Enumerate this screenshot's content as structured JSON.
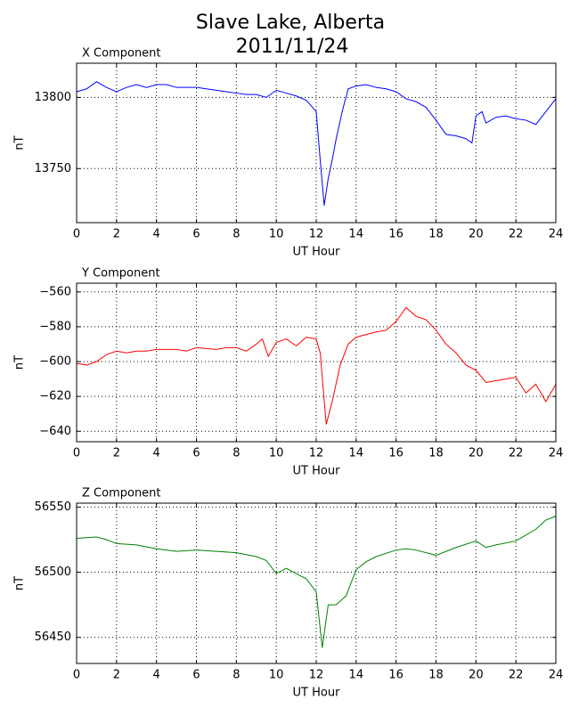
{
  "title": [
    "Slave Lake, Alberta",
    "2011/11/24"
  ],
  "chart_data": [
    {
      "type": "line",
      "title": "X Component",
      "xlabel": "UT Hour",
      "ylabel": "nT",
      "grid": true,
      "xlim": [
        0,
        24
      ],
      "xticks": [
        0,
        2,
        4,
        6,
        8,
        10,
        12,
        14,
        16,
        18,
        20,
        22,
        24
      ],
      "ylim": [
        13712,
        13824
      ],
      "yticks": [
        13750,
        13800
      ],
      "x": [
        0,
        0.5,
        1,
        1.5,
        2,
        2.5,
        3,
        3.5,
        4,
        4.5,
        5,
        5.5,
        6,
        6.5,
        7,
        7.5,
        8,
        8.5,
        9,
        9.5,
        10,
        10.5,
        11,
        11.5,
        12,
        12.2,
        12.4,
        12.6,
        12.8,
        13,
        13.3,
        13.6,
        14,
        14.5,
        15,
        15.5,
        16,
        16.5,
        17,
        17.5,
        18,
        18.5,
        19,
        19.5,
        19.8,
        20,
        20.3,
        20.5,
        21,
        21.5,
        22,
        22.5,
        23,
        23.5,
        24
      ],
      "series": [
        {
          "color": "#0000ff",
          "values": [
            13804,
            13806,
            13811,
            13807,
            13804,
            13807,
            13809,
            13807,
            13809,
            13809,
            13807,
            13807,
            13807,
            13806,
            13805,
            13804,
            13803,
            13802,
            13802,
            13800,
            13805,
            13803,
            13801,
            13798,
            13790,
            13756,
            13724,
            13743,
            13756,
            13771,
            13790,
            13806,
            13808,
            13809,
            13807,
            13806,
            13804,
            13799,
            13797,
            13793,
            13784,
            13774,
            13773,
            13771,
            13768,
            13787,
            13790,
            13782,
            13786,
            13787,
            13785,
            13784,
            13781,
            13790,
            13799
          ]
        }
      ]
    },
    {
      "type": "line",
      "title": "Y Component",
      "xlabel": "UT Hour",
      "ylabel": "nT",
      "grid": true,
      "xlim": [
        0,
        24
      ],
      "xticks": [
        0,
        2,
        4,
        6,
        8,
        10,
        12,
        14,
        16,
        18,
        20,
        22,
        24
      ],
      "ylim": [
        -646,
        -555
      ],
      "yticks": [
        {
          "value": -640,
          "label": "−640"
        },
        {
          "value": -620,
          "label": "−620"
        },
        {
          "value": -600,
          "label": "−600"
        },
        {
          "value": -580,
          "label": "−580"
        },
        {
          "value": -560,
          "label": "−560"
        }
      ],
      "x": [
        0,
        0.5,
        1,
        1.5,
        2,
        2.5,
        3,
        3.5,
        4,
        5,
        5.5,
        6,
        7,
        7.5,
        8,
        8.5,
        9,
        9.3,
        9.6,
        10,
        10.5,
        11,
        11.5,
        12,
        12.2,
        12.5,
        12.8,
        13.2,
        13.6,
        14,
        15,
        15.5,
        16,
        16.5,
        17,
        17.5,
        18,
        18.5,
        19,
        19.5,
        20,
        20.5,
        21,
        21.5,
        22,
        22.5,
        23,
        23.5,
        24
      ],
      "series": [
        {
          "color": "#ff0000",
          "values": [
            -601,
            -602,
            -600,
            -596,
            -594,
            -595,
            -594,
            -594,
            -593,
            -593,
            -594,
            -592,
            -593,
            -592,
            -592,
            -594,
            -590,
            -587,
            -597,
            -589,
            -587,
            -591,
            -586,
            -587,
            -595,
            -636,
            -623,
            -602,
            -590,
            -586,
            -583,
            -582,
            -577,
            -569,
            -574,
            -576,
            -582,
            -590,
            -595,
            -602,
            -605,
            -612,
            -611,
            -610,
            -609,
            -618,
            -613,
            -623,
            -613
          ]
        }
      ]
    },
    {
      "type": "line",
      "title": "Z Component",
      "xlabel": "UT Hour",
      "ylabel": "nT",
      "grid": true,
      "xlim": [
        0,
        24
      ],
      "xticks": [
        0,
        2,
        4,
        6,
        8,
        10,
        12,
        14,
        16,
        18,
        20,
        22,
        24
      ],
      "ylim": [
        56430,
        56553
      ],
      "yticks": [
        56450,
        56500,
        56550
      ],
      "x": [
        0,
        1,
        1.5,
        2,
        3,
        4,
        5,
        6,
        7,
        8,
        9,
        9.5,
        10,
        10.5,
        11,
        11.5,
        12,
        12.3,
        12.6,
        13,
        13.5,
        14,
        14.5,
        15,
        16,
        16.5,
        17,
        18,
        19,
        20,
        20.5,
        21,
        22,
        23,
        23.5,
        24
      ],
      "series": [
        {
          "color": "#008000",
          "values": [
            56526,
            56527,
            56525,
            56522,
            56521,
            56518,
            56516,
            56517,
            56516,
            56515,
            56512,
            56509,
            56499,
            56503,
            56499,
            56495,
            56485,
            56442,
            56475,
            56475,
            56482,
            56502,
            56508,
            56512,
            56517,
            56518,
            56517,
            56513,
            56519,
            56524,
            56519,
            56521,
            56524,
            56533,
            56540,
            56543
          ]
        }
      ]
    }
  ]
}
